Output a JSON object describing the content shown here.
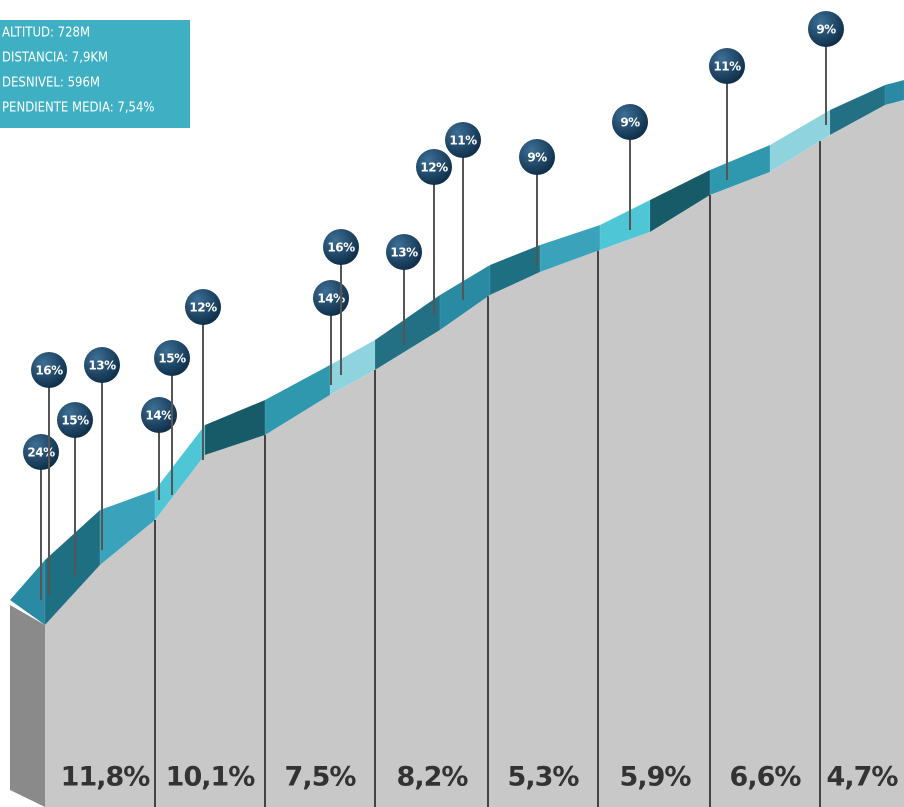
{
  "info": [
    "ALTITUD: 728M",
    "DISTANCIA: 7,9KM",
    "DESNIVEL: 596M",
    "PENDIENTE MEDIA: 7,54%"
  ],
  "pins": [
    "24%",
    "16%",
    "15%",
    "13%",
    "14%",
    "15%",
    "12%",
    "14%",
    "16%",
    "13%",
    "12%",
    "11%",
    "9%",
    "9%",
    "11%",
    "9%"
  ],
  "segments": [
    "11,8%",
    "10,1%",
    "7,5%",
    "8,2%",
    "5,3%",
    "5,9%",
    "6,6%",
    "4,7%"
  ]
}
